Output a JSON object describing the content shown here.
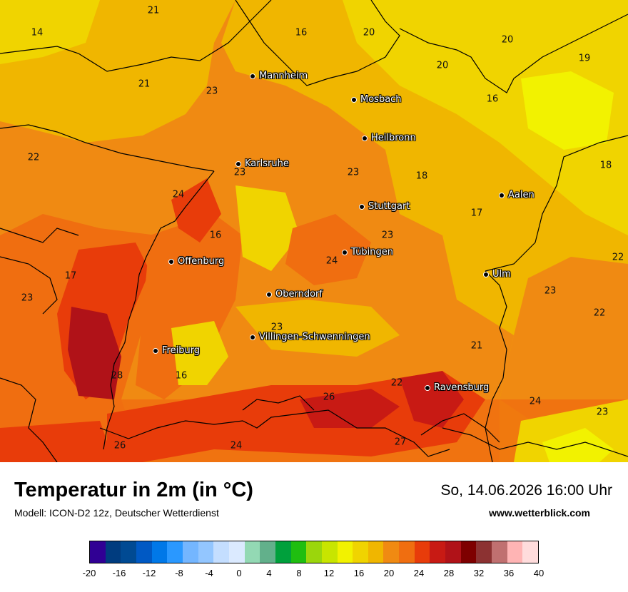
{
  "title": "Temperatur in 2m (in °C)",
  "model": "Modell: ICON-D2 12z, Deutscher Wetterdienst",
  "datetime": "So, 14.06.2026 16:00 Uhr",
  "website": "www.wetterblick.com",
  "cities": [
    {
      "name": "Mannheim"
    },
    {
      "name": "Mosbach"
    },
    {
      "name": "Heilbronn"
    },
    {
      "name": "Karlsruhe"
    },
    {
      "name": "Aalen"
    },
    {
      "name": "Stuttgart"
    },
    {
      "name": "Tübingen"
    },
    {
      "name": "Offenburg"
    },
    {
      "name": "Ulm"
    },
    {
      "name": "Oberndorf"
    },
    {
      "name": "Villingen-Schwenningen"
    },
    {
      "name": "Freiburg"
    },
    {
      "name": "Ravensburg"
    }
  ],
  "temperature_values": [
    "21",
    "14",
    "16",
    "20",
    "20",
    "19",
    "20",
    "21",
    "23",
    "16",
    "22",
    "23",
    "23",
    "18",
    "18",
    "24",
    "17",
    "16",
    "23",
    "22",
    "17",
    "24",
    "23",
    "23",
    "22",
    "23",
    "21",
    "28",
    "16",
    "22",
    "26",
    "24",
    "23",
    "26",
    "24",
    "27"
  ],
  "legend": {
    "colors": [
      "#300094",
      "#003c7f",
      "#004a93",
      "#0059c4",
      "#0078e8",
      "#2a98ff",
      "#74b6ff",
      "#93c6ff",
      "#c4deff",
      "#dbeaff",
      "#93d9b4",
      "#62b08b",
      "#00a03c",
      "#1fbe10",
      "#9bd60c",
      "#c8e500",
      "#f2f200",
      "#f0d400",
      "#f0b600",
      "#f08a12",
      "#f06e10",
      "#e83c0a",
      "#c81a14",
      "#b01218",
      "#7e0000",
      "#8c3232",
      "#c07070",
      "#ffb4b4",
      "#ffdcdc"
    ],
    "tick_labels": [
      "-20",
      "-16",
      "-12",
      "-8",
      "-4",
      "0",
      "4",
      "8",
      "12",
      "16",
      "20",
      "24",
      "28",
      "32",
      "36",
      "40"
    ]
  }
}
